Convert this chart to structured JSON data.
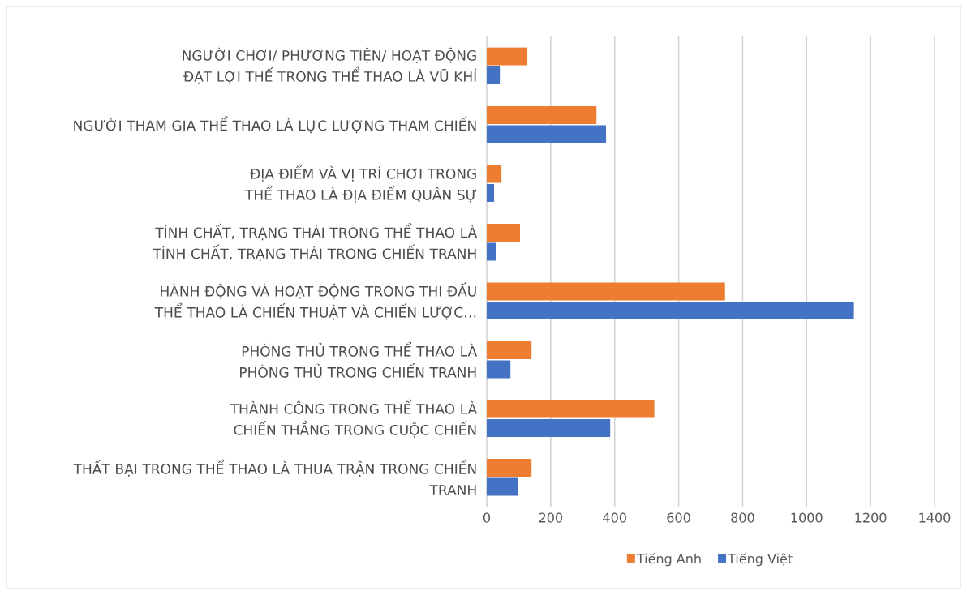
{
  "chart_data": {
    "type": "bar",
    "orientation": "horizontal",
    "categories": [
      "NGƯỜI CHƠI/ PHƯƠNG TIỆN/ HOẠT ĐỘNG ĐẠT LỢI THẾ TRONG THỂ THAO LÀ VŨ KHÍ",
      "NGƯỜI THAM GIA THỂ THAO LÀ LỰC LƯỢNG THAM CHIẾN",
      "ĐỊA ĐIỂM VÀ VỊ TRÍ CHƠI TRONG THỂ THAO LÀ ĐỊA ĐIỂM QUÂN SỰ",
      "TÍNH CHẤT, TRẠNG THÁI TRONG THỂ THAO LÀ TÍNH CHẤT, TRẠNG THÁI TRONG CHIẾN TRANH",
      "HÀNH ĐỘNG VÀ HOẠT ĐỘNG TRONG THI ĐẤU THỂ THAO LÀ CHIẾN THUẬT VÀ CHIẾN LƯỢC…",
      "PHÒNG THỦ TRONG THỂ THAO LÀ PHÒNG THỦ TRONG CHIẾN TRANH",
      "THÀNH CÔNG TRONG THỂ THAO LÀ CHIẾN THẮNG TRONG CUỘC CHIẾN",
      "THẤT BẠI TRONG THỂ THAO LÀ THUA TRẬN TRONG CHIẾN TRANH"
    ],
    "series": [
      {
        "name": "Tiếng Anh",
        "color": "#ed7d31",
        "values": [
          127,
          343,
          46,
          104,
          745,
          140,
          524,
          140
        ]
      },
      {
        "name": "Tiếng Việt",
        "color": "#4472c4",
        "values": [
          41,
          373,
          23,
          30,
          1148,
          74,
          386,
          99
        ]
      }
    ],
    "xlim": [
      0,
      1400
    ],
    "xticks": [
      0,
      200,
      400,
      600,
      800,
      1000,
      1200,
      1400
    ],
    "grid": "x",
    "legend": "bottom"
  }
}
